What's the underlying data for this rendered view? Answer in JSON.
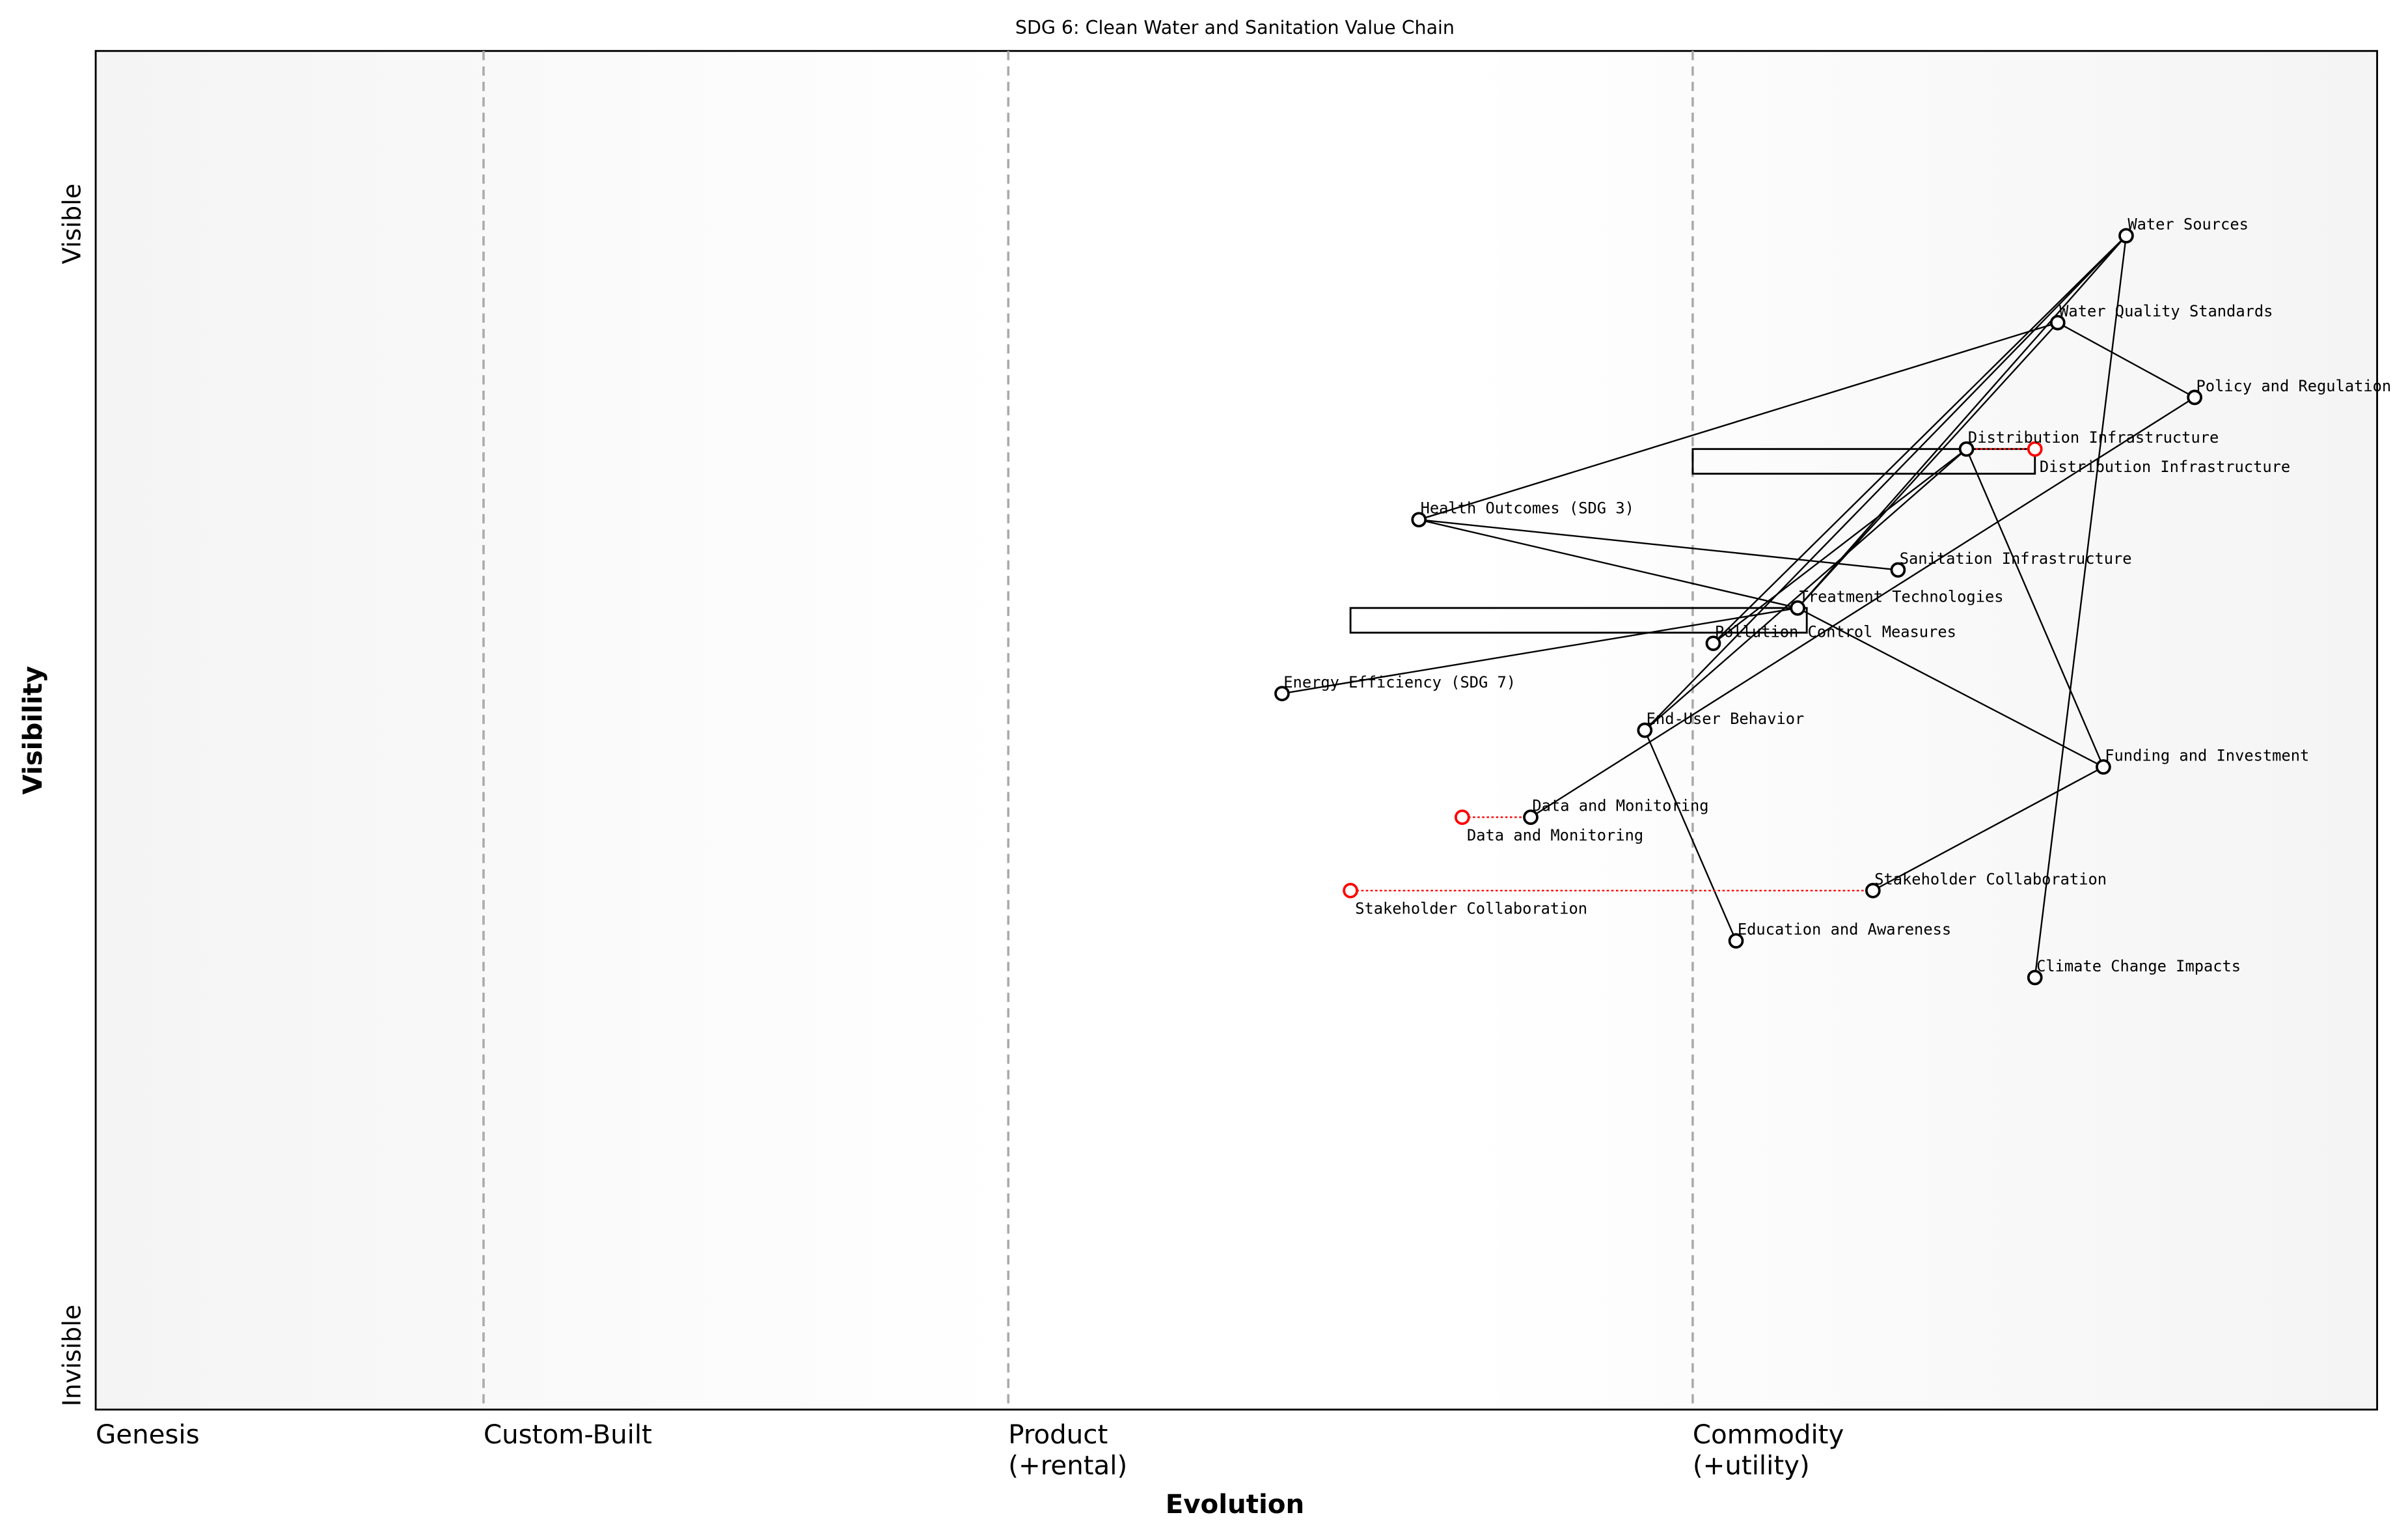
{
  "title": "SDG 6: Clean Water and Sanitation Value Chain",
  "x_axis_label": "Evolution",
  "y_axis_label": "Visibility",
  "y_top_label": "Visible",
  "y_bottom_label": "Invisible",
  "stages": [
    {
      "label": "Genesis",
      "sub": "",
      "evolution": 0.0
    },
    {
      "label": "Custom-Built",
      "sub": "",
      "evolution": 0.17
    },
    {
      "label": "Product",
      "sub": "(+rental)",
      "evolution": 0.4
    },
    {
      "label": "Commodity",
      "sub": "(+utility)",
      "evolution": 0.7
    }
  ],
  "colors": {
    "node": "#000000",
    "evolved": "#ff0000",
    "stage_line": "#aaaaaa",
    "edge_bg": "#f5f5f5"
  },
  "chart_data": {
    "type": "wardley-map",
    "xlim": [
      0,
      1
    ],
    "ylim": [
      0,
      1
    ],
    "nodes": [
      {
        "id": "ws",
        "label": "Water Sources",
        "evolution": 0.89,
        "visibility": 0.864
      },
      {
        "id": "wqs",
        "label": "Water Quality Standards",
        "evolution": 0.86,
        "visibility": 0.8
      },
      {
        "id": "pr",
        "label": "Policy and Regulation",
        "evolution": 0.92,
        "visibility": 0.745
      },
      {
        "id": "di",
        "label": "Distribution Infrastructure",
        "evolution": 0.82,
        "visibility": 0.707
      },
      {
        "id": "ho",
        "label": "Health Outcomes (SDG 3)",
        "evolution": 0.58,
        "visibility": 0.655
      },
      {
        "id": "si",
        "label": "Sanitation Infrastructure",
        "evolution": 0.79,
        "visibility": 0.618
      },
      {
        "id": "tt",
        "label": "Treatment Technologies",
        "evolution": 0.746,
        "visibility": 0.59
      },
      {
        "id": "pcm",
        "label": "Pollution Control Measures",
        "evolution": 0.709,
        "visibility": 0.564
      },
      {
        "id": "ee",
        "label": "Energy Efficiency (SDG 7)",
        "evolution": 0.52,
        "visibility": 0.527
      },
      {
        "id": "eub",
        "label": "End-User Behavior",
        "evolution": 0.679,
        "visibility": 0.5
      },
      {
        "id": "fi",
        "label": "Funding and Investment",
        "evolution": 0.88,
        "visibility": 0.473
      },
      {
        "id": "dm",
        "label": "Data and Monitoring",
        "evolution": 0.629,
        "visibility": 0.436
      },
      {
        "id": "sc",
        "label": "Stakeholder Collaboration",
        "evolution": 0.779,
        "visibility": 0.382
      },
      {
        "id": "ea",
        "label": "Education and Awareness",
        "evolution": 0.719,
        "visibility": 0.345
      },
      {
        "id": "cci",
        "label": "Climate Change Impacts",
        "evolution": 0.85,
        "visibility": 0.318
      }
    ],
    "edges": [
      [
        "ws",
        "cci"
      ],
      [
        "ws",
        "tt"
      ],
      [
        "ws",
        "eub"
      ],
      [
        "ws",
        "pcm"
      ],
      [
        "wqs",
        "ho"
      ],
      [
        "wqs",
        "pr"
      ],
      [
        "wqs",
        "tt"
      ],
      [
        "pr",
        "dm"
      ],
      [
        "di",
        "fi"
      ],
      [
        "di",
        "eub"
      ],
      [
        "di",
        "pcm"
      ],
      [
        "ho",
        "si"
      ],
      [
        "ho",
        "tt"
      ],
      [
        "tt",
        "fi"
      ],
      [
        "ee",
        "tt"
      ],
      [
        "eub",
        "ea"
      ],
      [
        "fi",
        "sc"
      ]
    ],
    "evolutions": [
      {
        "id": "di",
        "label": "Distribution Infrastructure",
        "to_evolution": 0.85
      },
      {
        "id": "dm",
        "label": "Data and Monitoring",
        "to_evolution": 0.599
      },
      {
        "id": "sc",
        "label": "Stakeholder Collaboration",
        "to_evolution": 0.55
      }
    ],
    "inertia": [
      {
        "id": "di",
        "from_evolution": 0.7,
        "to_evolution": 0.85
      },
      {
        "id": "tt",
        "from_evolution": 0.55,
        "to_evolution": 0.75
      }
    ]
  }
}
